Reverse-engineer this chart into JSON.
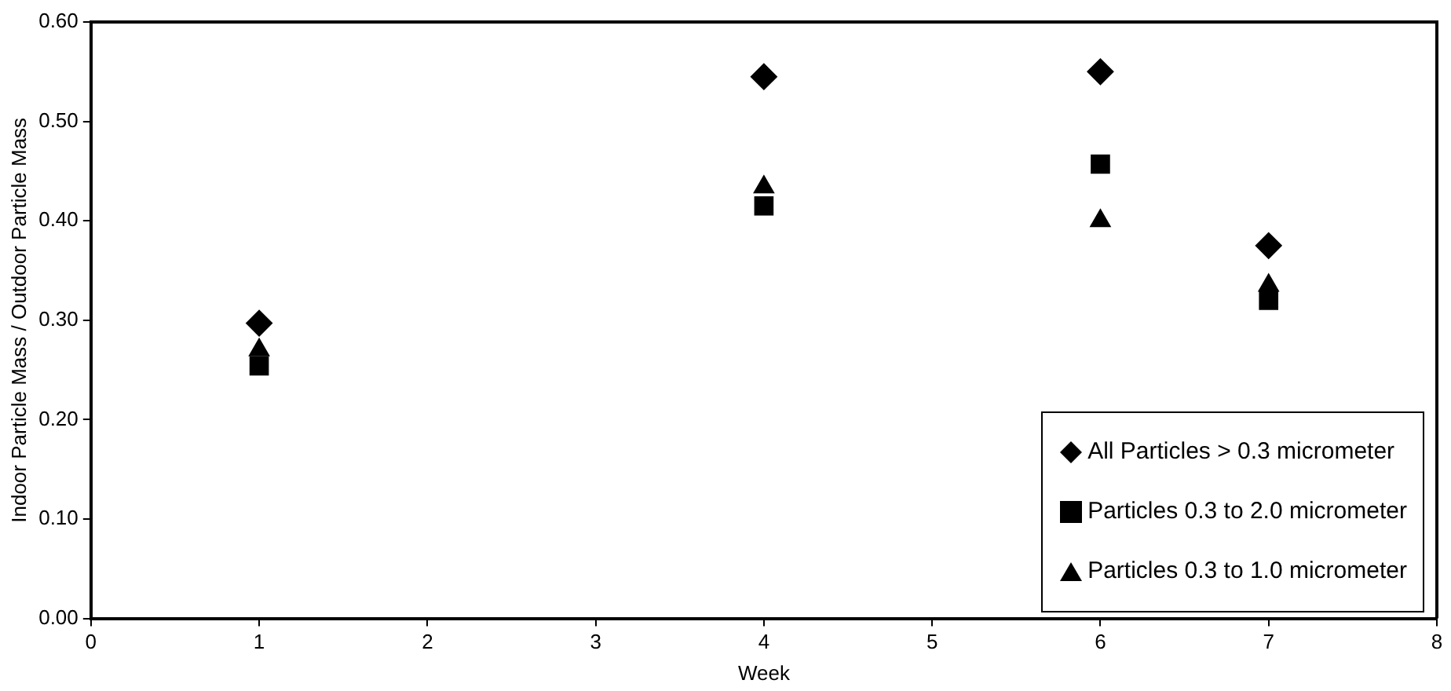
{
  "chart_data": {
    "type": "scatter",
    "xlabel": "Week",
    "ylabel": "Indoor Particle Mass / Outdoor Particle Mass",
    "x": [
      1,
      4,
      6,
      7
    ],
    "series": [
      {
        "name": "All Particles > 0.3 micrometer",
        "color": "#000000",
        "marker": "diamond",
        "values": [
          0.297,
          0.545,
          0.55,
          0.375
        ]
      },
      {
        "name": "Particles 0.3 to 2.0 micrometer",
        "color": "#000000",
        "marker": "square",
        "values": [
          0.254,
          0.415,
          0.457,
          0.32
        ]
      },
      {
        "name": "Particles 0.3 to 1.0 micrometer",
        "color": "#000000",
        "marker": "triangle",
        "values": [
          0.27,
          0.434,
          0.4,
          0.335
        ]
      }
    ],
    "xlim": [
      0,
      8
    ],
    "xticks": [
      0,
      1,
      2,
      3,
      4,
      5,
      6,
      7,
      8
    ],
    "ylim": [
      0,
      0.6
    ],
    "yticks": [
      {
        "value": 0,
        "label": "0.00"
      },
      {
        "value": 0.1,
        "label": "0.10"
      },
      {
        "value": 0.2,
        "label": "0.20"
      },
      {
        "value": 0.3,
        "label": "0.30"
      },
      {
        "value": 0.4,
        "label": "0.40"
      },
      {
        "value": 0.5,
        "label": "0.50"
      },
      {
        "value": 0.6,
        "label": "0.60"
      }
    ],
    "grid": false,
    "legend": "bottom right"
  }
}
